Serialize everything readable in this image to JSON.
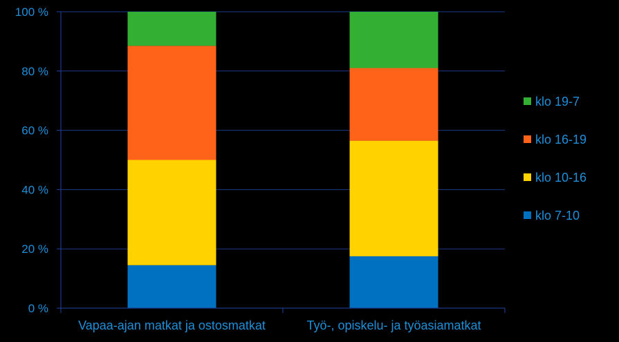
{
  "chart_data": {
    "type": "bar",
    "stacked": true,
    "percent": true,
    "categories": [
      "Vapaa-ajan matkat ja ostosmatkat",
      "Työ-, opiskelu- ja työasiamatkat"
    ],
    "series": [
      {
        "name": "klo 7-10",
        "color": "#0070C0",
        "values": [
          14.5,
          17.5
        ]
      },
      {
        "name": "klo 10-16",
        "color": "#FFD200",
        "values": [
          35.5,
          39
        ]
      },
      {
        "name": "klo 16-19",
        "color": "#FF6319",
        "values": [
          38.5,
          24.5
        ]
      },
      {
        "name": "klo 19-7",
        "color": "#33B033",
        "values": [
          11.5,
          19
        ]
      }
    ],
    "ylim": [
      0,
      100
    ],
    "yticks": [
      "0 %",
      "20 %",
      "40 %",
      "60 %",
      "80 %",
      "100 %"
    ],
    "grid": true,
    "legend_position": "right",
    "title": "",
    "xlabel": "",
    "ylabel": ""
  },
  "colors": {
    "background": "#000000",
    "text": "#1f8fd8",
    "grid": "#1c3a8a"
  }
}
